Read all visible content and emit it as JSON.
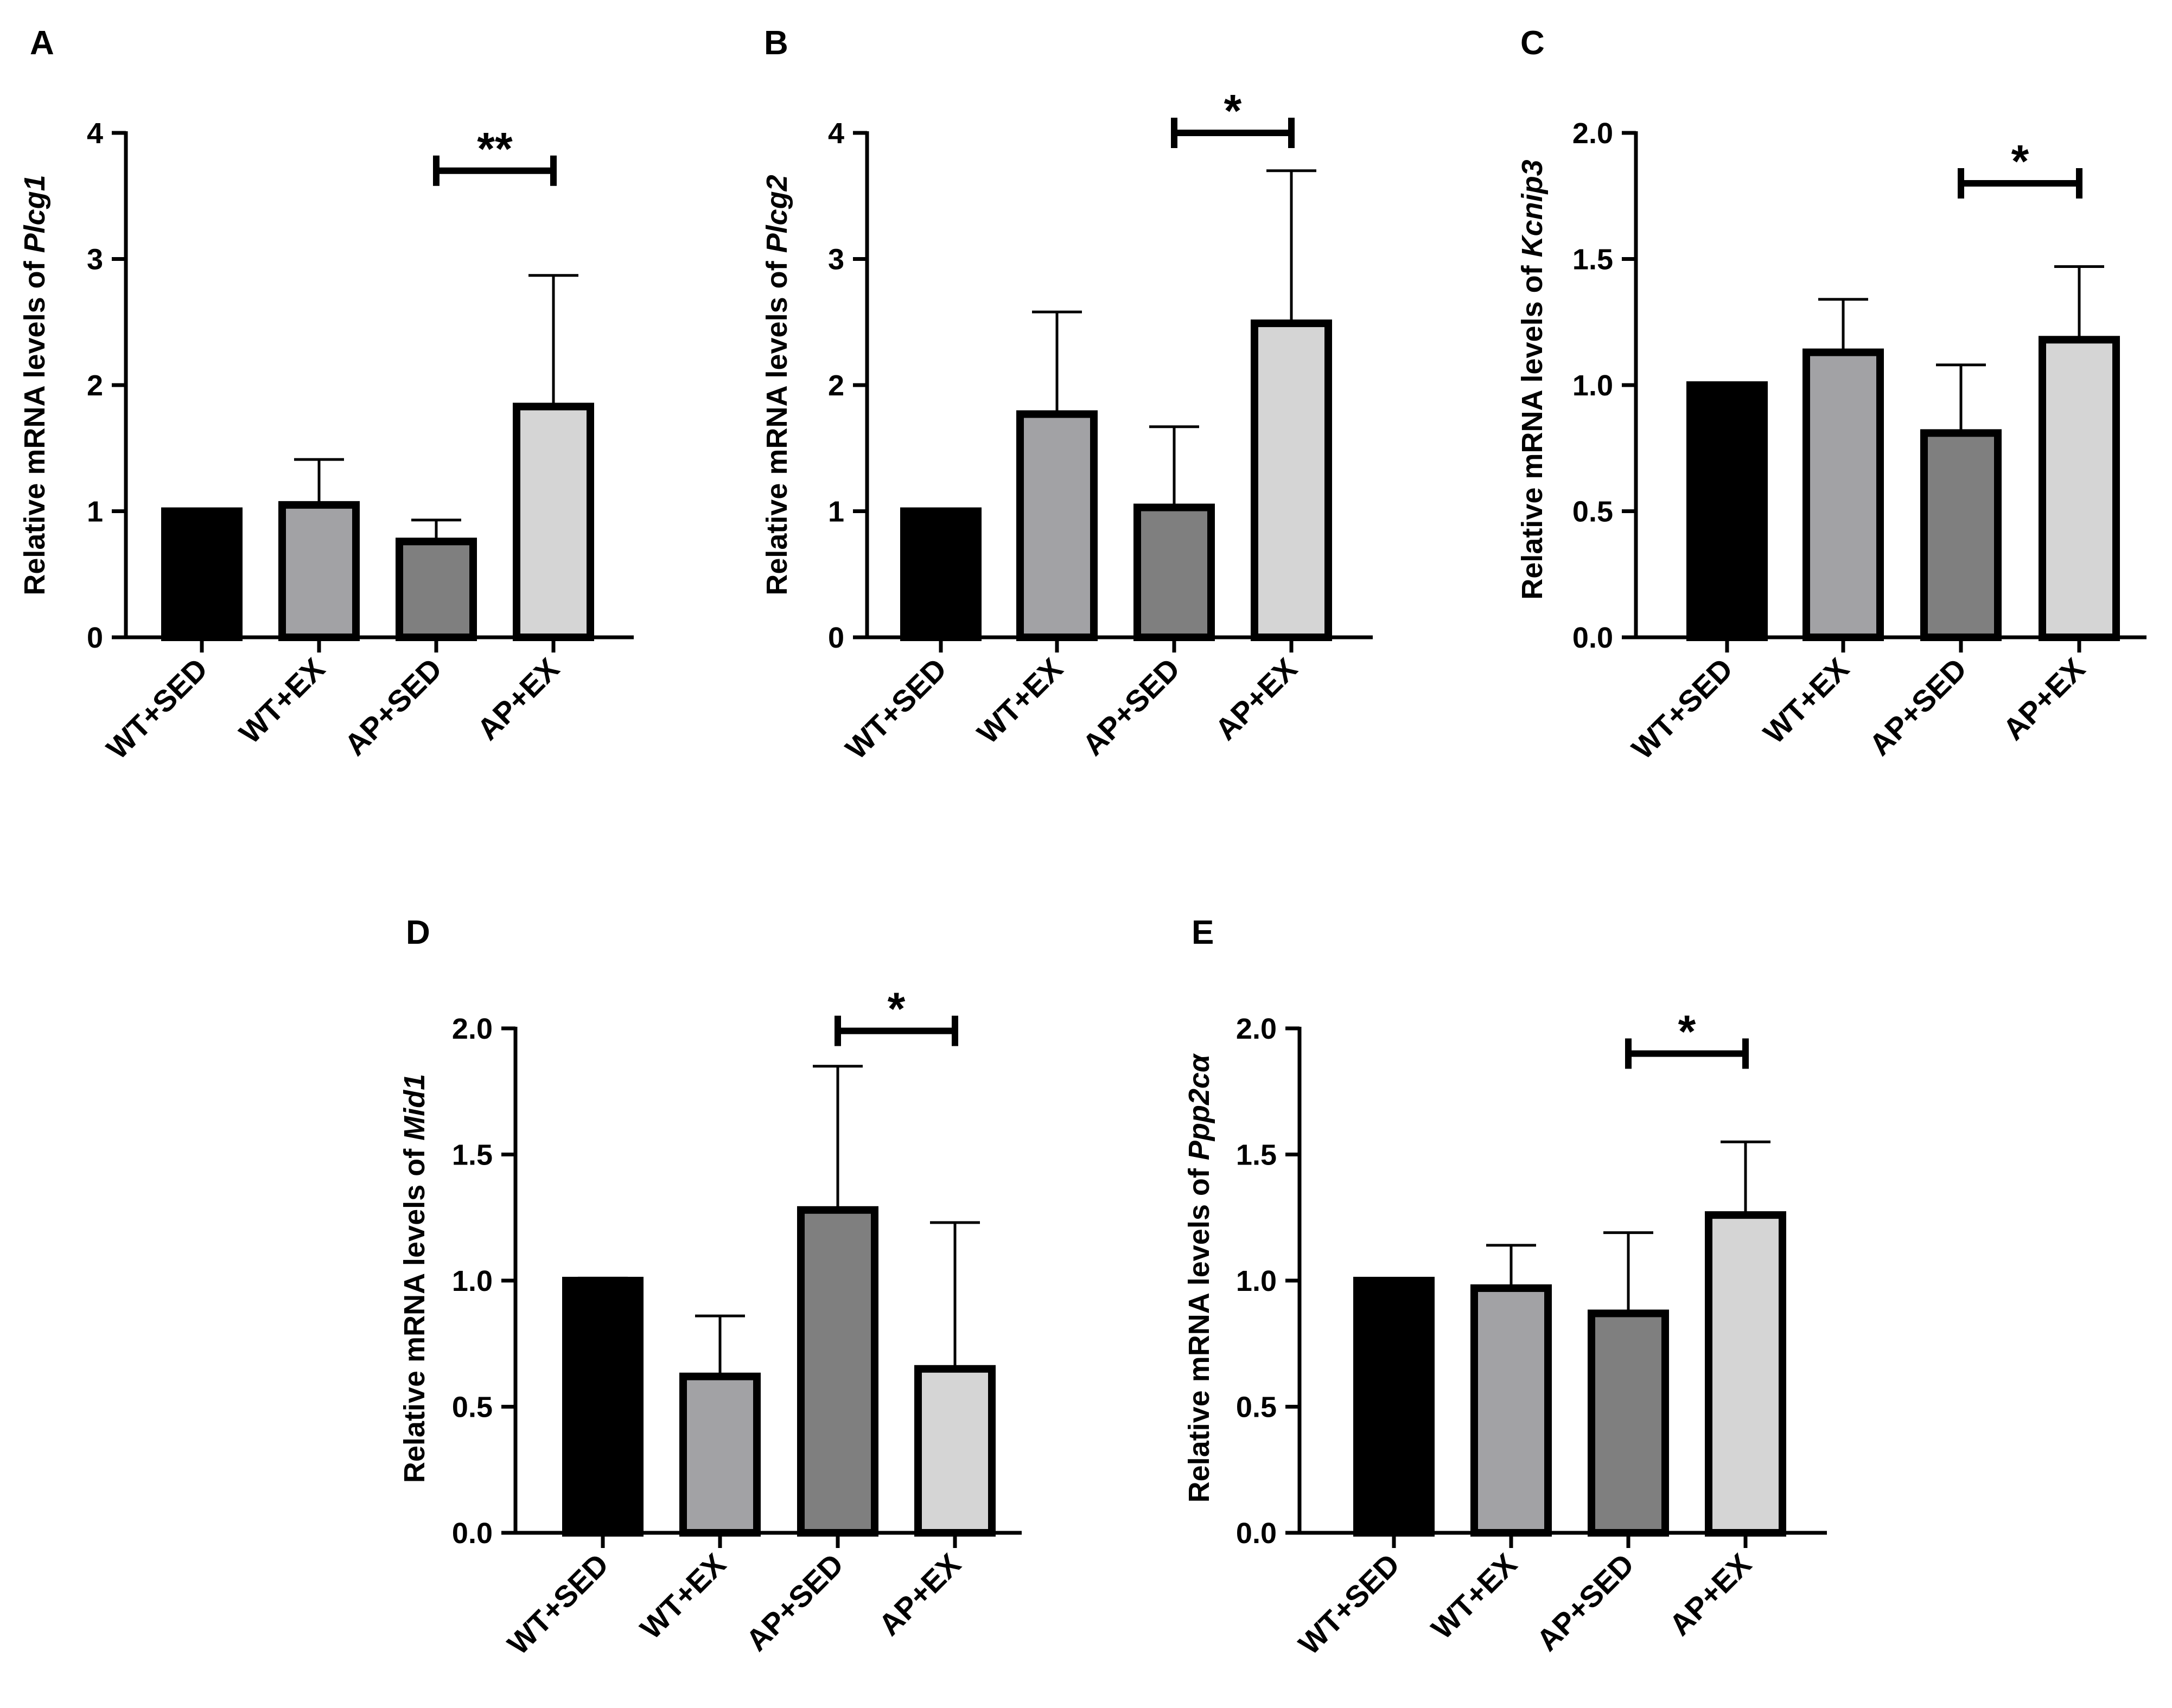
{
  "categories": [
    "WT+SED",
    "WT+EX",
    "AP+SED",
    "AP+EX"
  ],
  "bar_colors": [
    "#000000",
    "#a2a2a5",
    "#7f7f7f",
    "#d5d5d5"
  ],
  "chart_data": [
    {
      "panel": "A",
      "type": "bar",
      "ylabel_prefix": "Relative mRNA levels of ",
      "ylabel_gene": "Plcg1",
      "ylim": [
        0,
        4
      ],
      "yticks": [
        "0",
        "1",
        "2",
        "3",
        "4"
      ],
      "ytick_values": [
        0,
        1,
        2,
        3,
        4
      ],
      "values": [
        1.0,
        1.05,
        0.76,
        1.83
      ],
      "errors": [
        0.0,
        0.36,
        0.17,
        1.04
      ],
      "sig": {
        "from": 2,
        "to": 3,
        "label": "**",
        "y": 3.7
      }
    },
    {
      "panel": "B",
      "type": "bar",
      "ylabel_prefix": "Relative mRNA levels of ",
      "ylabel_gene": "Plcg2",
      "ylim": [
        0,
        4
      ],
      "yticks": [
        "0",
        "1",
        "2",
        "3",
        "4"
      ],
      "ytick_values": [
        0,
        1,
        2,
        3,
        4
      ],
      "values": [
        1.0,
        1.77,
        1.03,
        2.49
      ],
      "errors": [
        0.0,
        0.81,
        0.64,
        1.21
      ],
      "sig": {
        "from": 2,
        "to": 3,
        "label": "*",
        "y": 4.0
      }
    },
    {
      "panel": "C",
      "type": "bar",
      "ylabel_prefix": "Relative mRNA levels of ",
      "ylabel_gene": "Kcnip3",
      "ylim": [
        0,
        2
      ],
      "yticks": [
        "0.0",
        "0.5",
        "1.0",
        "1.5",
        "2.0"
      ],
      "ytick_values": [
        0,
        0.5,
        1,
        1.5,
        2
      ],
      "values": [
        1.0,
        1.13,
        0.81,
        1.18
      ],
      "errors": [
        0.0,
        0.21,
        0.27,
        0.29
      ],
      "sig": {
        "from": 2,
        "to": 3,
        "label": "*",
        "y": 1.8
      }
    },
    {
      "panel": "D",
      "type": "bar",
      "ylabel_prefix": "Relative mRNA levels of ",
      "ylabel_gene": "Mid1",
      "ylim": [
        0,
        2
      ],
      "yticks": [
        "0.0",
        "0.5",
        "1.0",
        "1.5",
        "2.0"
      ],
      "ytick_values": [
        0,
        0.5,
        1,
        1.5,
        2
      ],
      "values": [
        1.0,
        0.62,
        1.28,
        0.65
      ],
      "errors": [
        0.01,
        0.24,
        0.57,
        0.58
      ],
      "sig": {
        "from": 2,
        "to": 3,
        "label": "*",
        "y": 1.99
      }
    },
    {
      "panel": "E",
      "type": "bar",
      "ylabel_prefix": "Relative mRNA levels of ",
      "ylabel_gene": "Ppp2cα",
      "ylim": [
        0,
        2
      ],
      "yticks": [
        "0.0",
        "0.5",
        "1.0",
        "1.5",
        "2.0"
      ],
      "ytick_values": [
        0,
        0.5,
        1,
        1.5,
        2
      ],
      "values": [
        1.0,
        0.97,
        0.87,
        1.26
      ],
      "errors": [
        0.0,
        0.17,
        0.32,
        0.29
      ],
      "sig": {
        "from": 2,
        "to": 3,
        "label": "*",
        "y": 1.9
      }
    }
  ]
}
